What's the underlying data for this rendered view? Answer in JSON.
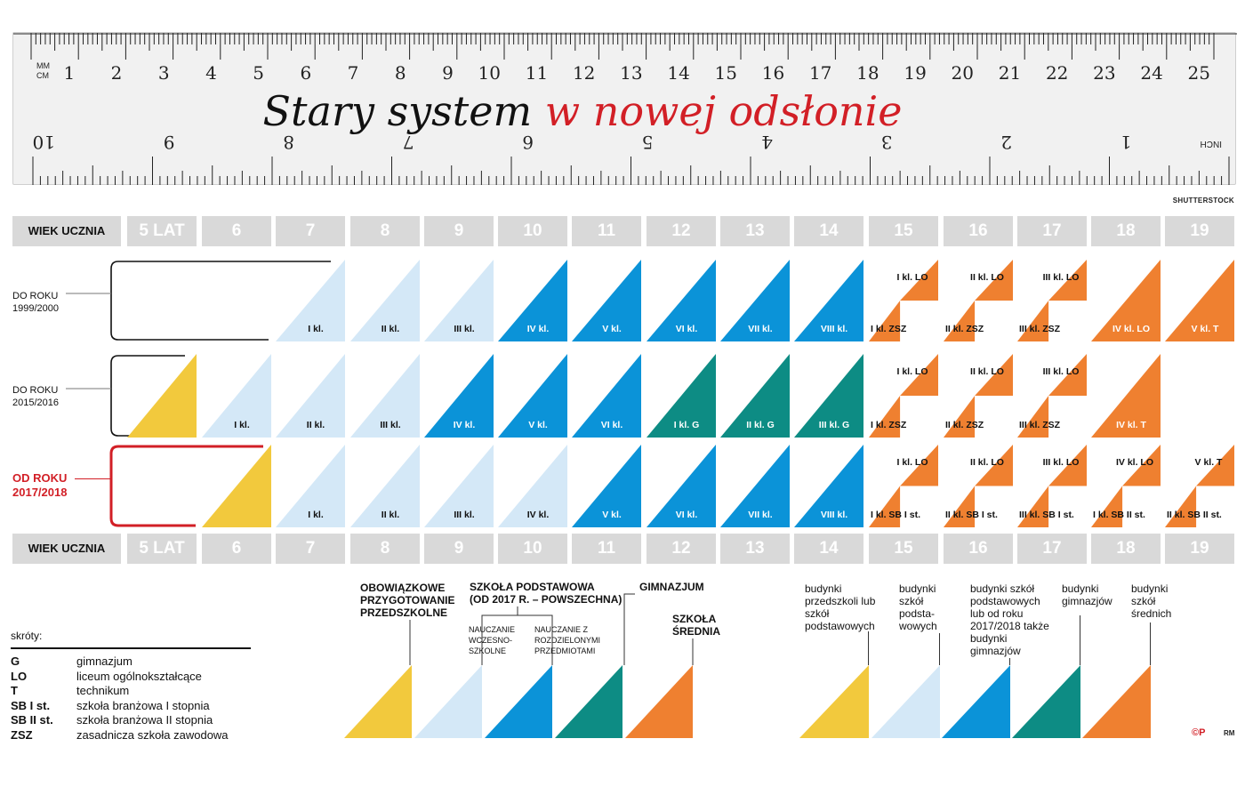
{
  "ruler": {
    "cm_unit_top": "MM",
    "cm_unit_bottom": "CM",
    "cm_numbers": [
      "1",
      "2",
      "3",
      "4",
      "5",
      "6",
      "7",
      "8",
      "9",
      "10",
      "11",
      "12",
      "13",
      "14",
      "15",
      "16",
      "17",
      "18",
      "19",
      "20",
      "21",
      "22",
      "23",
      "24",
      "25"
    ],
    "inch_numbers": [
      "10",
      "9",
      "8",
      "7",
      "6",
      "5",
      "4",
      "3",
      "2",
      "1"
    ],
    "inch_unit": "INCH"
  },
  "title": {
    "part1": "Stary system",
    "part2": "w nowej odsłonie"
  },
  "credit": "SHUTTERSTOCK",
  "age_header": {
    "label": "WIEK UCZNIA",
    "ages": [
      "5 LAT",
      "6",
      "7",
      "8",
      "9",
      "10",
      "11",
      "12",
      "13",
      "14",
      "15",
      "16",
      "17",
      "18",
      "19"
    ]
  },
  "rows": [
    {
      "label_line1": "DO ROKU",
      "label_line2": "1999/2000",
      "cells": [
        null,
        null,
        {
          "t": "tri",
          "c": "lb",
          "label": "I kl."
        },
        {
          "t": "tri",
          "c": "lb",
          "label": "II kl."
        },
        {
          "t": "tri",
          "c": "lb",
          "label": "III kl."
        },
        {
          "t": "tri",
          "c": "b",
          "label": "IV kl."
        },
        {
          "t": "tri",
          "c": "b",
          "label": "V kl."
        },
        {
          "t": "tri",
          "c": "b",
          "label": "VI kl."
        },
        {
          "t": "tri",
          "c": "b",
          "label": "VII kl."
        },
        {
          "t": "tri",
          "c": "b",
          "label": "VIII kl."
        },
        {
          "t": "split",
          "c": "o",
          "top": "I kl. LO",
          "bottom": "I kl. ZSZ"
        },
        {
          "t": "split",
          "c": "o",
          "top": "II kl. LO",
          "bottom": "II kl. ZSZ"
        },
        {
          "t": "split",
          "c": "o",
          "top": "III kl. LO",
          "bottom": "III kl. ZSZ"
        },
        {
          "t": "tri",
          "c": "o",
          "label": "IV kl. LO"
        },
        {
          "t": "tri",
          "c": "o",
          "label": "V kl. T"
        }
      ]
    },
    {
      "label_line1": "DO ROKU",
      "label_line2": "2015/2016",
      "cells": [
        {
          "t": "tri",
          "c": "y",
          "label": ""
        },
        {
          "t": "tri",
          "c": "lb",
          "label": "I kl."
        },
        {
          "t": "tri",
          "c": "lb",
          "label": "II kl."
        },
        {
          "t": "tri",
          "c": "lb",
          "label": "III kl."
        },
        {
          "t": "tri",
          "c": "b",
          "label": "IV kl."
        },
        {
          "t": "tri",
          "c": "b",
          "label": "V kl."
        },
        {
          "t": "tri",
          "c": "b",
          "label": "VI kl."
        },
        {
          "t": "tri",
          "c": "g",
          "label": "I kl. G"
        },
        {
          "t": "tri",
          "c": "g",
          "label": "II kl. G"
        },
        {
          "t": "tri",
          "c": "g",
          "label": "III kl. G"
        },
        {
          "t": "split",
          "c": "o",
          "top": "I kl. LO",
          "bottom": "I kl. ZSZ"
        },
        {
          "t": "split",
          "c": "o",
          "top": "II kl. LO",
          "bottom": "II kl. ZSZ"
        },
        {
          "t": "split",
          "c": "o",
          "top": "III kl. LO",
          "bottom": "III kl. ZSZ"
        },
        {
          "t": "tri",
          "c": "o",
          "label": "IV kl. T"
        },
        null
      ]
    },
    {
      "label_line1": "OD ROKU",
      "label_line2": "2017/2018",
      "cells": [
        null,
        {
          "t": "tri",
          "c": "y",
          "label": ""
        },
        {
          "t": "tri",
          "c": "lb",
          "label": "I kl."
        },
        {
          "t": "tri",
          "c": "lb",
          "label": "II kl."
        },
        {
          "t": "tri",
          "c": "lb",
          "label": "III kl."
        },
        {
          "t": "tri",
          "c": "lb",
          "label": "IV kl."
        },
        {
          "t": "tri",
          "c": "b",
          "label": "V kl."
        },
        {
          "t": "tri",
          "c": "b",
          "label": "VI kl."
        },
        {
          "t": "tri",
          "c": "b",
          "label": "VII kl."
        },
        {
          "t": "tri",
          "c": "b",
          "label": "VIII kl."
        },
        {
          "t": "split",
          "c": "o",
          "top": "I kl. LO",
          "bottom": "I kl. SB I st."
        },
        {
          "t": "split",
          "c": "o",
          "top": "II kl. LO",
          "bottom": "II kl. SB I st."
        },
        {
          "t": "split",
          "c": "o",
          "top": "III kl. LO",
          "bottom": "III kl. SB I st."
        },
        {
          "t": "split",
          "c": "o",
          "top": "IV kl. LO",
          "bottom": "I kl. SB II st."
        },
        {
          "t": "split",
          "c": "o",
          "top": "V kl. T",
          "bottom": "II kl. SB II st."
        }
      ]
    }
  ],
  "legend_types": {
    "preschool": "OBOWIĄZKOWE PRZYGOTOWANIE PRZEDSZKOLNE",
    "primary": "SZKOŁA PODSTAWOWA",
    "primary_sub": "(OD 2017 R. – POWSZECHNA)",
    "early": "NAUCZANIE WCZESNO- SZKOLNE",
    "subjects": "NAUCZANIE Z ROZDZIELONYMI PRZEDMIOTAMI",
    "gimnazjum": "GIMNAZJUM",
    "secondary": "SZKOŁA ŚREDNIA"
  },
  "legend_buildings": [
    "budynki przedszkoli lub szkół podstawowych",
    "budynki szkół podsta- wowych",
    "budynki szkół podstawowych lub od roku 2017/2018 także budynki gimnazjów",
    "budynki gimnazjów",
    "budynki szkół średnich"
  ],
  "abbreviations": {
    "title": "skróty:",
    "items": [
      {
        "key": "G",
        "value": "gimnazjum"
      },
      {
        "key": "LO",
        "value": "liceum ogólnokształcące"
      },
      {
        "key": "T",
        "value": "technikum"
      },
      {
        "key": "SB I st.",
        "value": "szkoła branżowa I stopnia"
      },
      {
        "key": "SB II st.",
        "value": "szkoła branżowa II stopnia"
      },
      {
        "key": "ZSZ",
        "value": "zasadnicza szkoła zawodowa"
      }
    ]
  },
  "logo": "©P",
  "author": "RM",
  "colors": {
    "y": "#f2c93d",
    "lb": "#d4e8f7",
    "b": "#0b93d8",
    "g": "#0d8c84",
    "o": "#ef8030",
    "red": "#d21f26",
    "grey": "#d9d9d9"
  }
}
